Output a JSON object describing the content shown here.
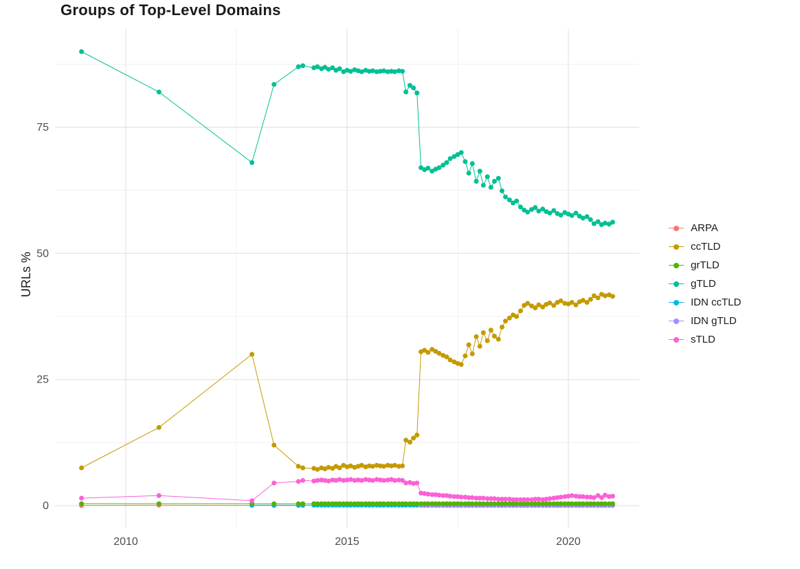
{
  "title": "Groups of Top-Level Domains",
  "chart_data": {
    "type": "line",
    "title": "Groups of Top-Level Domains",
    "xlabel": "",
    "ylabel": "URLs %",
    "xlim": [
      2008.4,
      2021.6
    ],
    "ylim": [
      -4.5,
      94.5
    ],
    "xticks": [
      2010,
      2015,
      2020
    ],
    "yticks": [
      0,
      25,
      50,
      75
    ],
    "legend_position": "right",
    "grid": {
      "major_color": "#e3e3e3",
      "minor_color": "#f0f0f0",
      "minor_x": [
        2012.5,
        2017.5
      ],
      "minor_y": [
        12.5,
        37.5,
        62.5,
        87.5
      ]
    },
    "background": "#ffffff",
    "x_grid": [
      2009.0,
      2010.75,
      2012.85,
      2013.35,
      2013.9,
      2014.0,
      2014.25,
      2014.33,
      2014.42,
      2014.5,
      2014.58,
      2014.67,
      2014.75,
      2014.83,
      2014.92,
      2015.0,
      2015.08,
      2015.17,
      2015.25,
      2015.33,
      2015.42,
      2015.5,
      2015.58,
      2015.67,
      2015.75,
      2015.83,
      2015.92,
      2016.0,
      2016.08,
      2016.17,
      2016.25,
      2016.33,
      2016.42,
      2016.5,
      2016.58,
      2016.67,
      2016.75,
      2016.83,
      2016.92,
      2017.0,
      2017.08,
      2017.17,
      2017.25,
      2017.33,
      2017.42,
      2017.5,
      2017.58,
      2017.67,
      2017.75,
      2017.83,
      2017.92,
      2018.0,
      2018.08,
      2018.17,
      2018.25,
      2018.33,
      2018.42,
      2018.5,
      2018.58,
      2018.67,
      2018.75,
      2018.83,
      2018.92,
      2019.0,
      2019.08,
      2019.17,
      2019.25,
      2019.33,
      2019.42,
      2019.5,
      2019.58,
      2019.67,
      2019.75,
      2019.83,
      2019.92,
      2020.0,
      2020.08,
      2020.17,
      2020.25,
      2020.33,
      2020.42,
      2020.5,
      2020.58,
      2020.67,
      2020.75,
      2020.83,
      2020.92,
      2021.0
    ],
    "series": [
      {
        "name": "ARPA",
        "color": "#F8766D",
        "z": 1,
        "points": [
          [
            2009.0,
            0.05
          ],
          [
            2010.75,
            0.1
          ],
          [
            2012.85,
            0.07
          ],
          [
            2013.35,
            0.05
          ],
          [
            2013.9,
            0.05
          ],
          [
            2014.0,
            0.05
          ]
        ]
      },
      {
        "name": "ccTLD",
        "color": "#C49A00",
        "z": 6,
        "y": [
          7.5,
          15.5,
          30,
          12,
          7.8,
          7.5,
          7.4,
          7.2,
          7.5,
          7.3,
          7.6,
          7.4,
          7.8,
          7.5,
          8,
          7.7,
          7.9,
          7.6,
          7.8,
          8,
          7.7,
          7.9,
          7.8,
          8,
          7.9,
          7.8,
          8,
          7.9,
          8,
          7.8,
          7.9,
          13,
          12.6,
          13.4,
          14,
          30.5,
          30.8,
          30.4,
          31,
          30.6,
          30.2,
          29.8,
          29.5,
          28.9,
          28.5,
          28.2,
          28,
          29.7,
          31.9,
          30.1,
          33.5,
          31.6,
          34.3,
          32.7,
          34.8,
          33.6,
          33,
          35.4,
          36.6,
          37.2,
          37.8,
          37.5,
          38.6,
          39.7,
          40.1,
          39.6,
          39.2,
          39.8,
          39.4,
          39.9,
          40.2,
          39.7,
          40.3,
          40.6,
          40.1,
          40,
          40.3,
          39.8,
          40.4,
          40.7,
          40.3,
          40.9,
          41.6,
          41.2,
          41.9,
          41.6,
          41.8,
          41.5
        ]
      },
      {
        "name": "grTLD",
        "color": "#53B400",
        "z": 4,
        "y": 0.4
      },
      {
        "name": "gTLD",
        "color": "#00C094",
        "z": 7,
        "y": [
          90,
          82,
          68,
          83.5,
          87,
          87.2,
          86.8,
          87,
          86.6,
          86.9,
          86.5,
          86.8,
          86.3,
          86.6,
          86,
          86.3,
          86.1,
          86.4,
          86.2,
          86,
          86.3,
          86.1,
          86.2,
          86,
          86.1,
          86.2,
          86,
          86.1,
          86,
          86.2,
          86.1,
          82,
          83.3,
          82.8,
          81.8,
          67,
          66.6,
          66.9,
          66.3,
          66.7,
          67,
          67.5,
          68,
          68.8,
          69.2,
          69.6,
          70,
          68.2,
          65.9,
          67.8,
          64.3,
          66.3,
          63.5,
          65.2,
          63.1,
          64.3,
          64.9,
          62.4,
          61.2,
          60.6,
          60,
          60.4,
          59.2,
          58.6,
          58.2,
          58.7,
          59.1,
          58.4,
          58.8,
          58.3,
          58,
          58.5,
          57.9,
          57.6,
          58.1,
          57.8,
          57.5,
          58,
          57.4,
          57,
          57.3,
          56.7,
          55.9,
          56.3,
          55.7,
          56,
          55.8,
          56.2
        ]
      },
      {
        "name": "IDN ccTLD",
        "color": "#00B6EB",
        "z": 2,
        "x_range": [
          2012.8,
          2021.1
        ],
        "y": 0.1
      },
      {
        "name": "IDN gTLD",
        "color": "#A58AFF",
        "z": 3,
        "x_range": [
          2016.6,
          2021.1
        ],
        "y": 0.05
      },
      {
        "name": "sTLD",
        "color": "#FB61D7",
        "z": 5,
        "y": [
          1.5,
          2,
          1,
          4.5,
          4.8,
          5,
          4.9,
          5,
          5.1,
          5,
          4.9,
          5.1,
          5,
          5.2,
          5,
          5.1,
          5.2,
          5,
          5.1,
          5,
          5.2,
          5.1,
          5,
          5.2,
          5.1,
          5,
          5.1,
          5.2,
          5,
          5.1,
          5,
          4.5,
          4.6,
          4.4,
          4.5,
          2.5,
          2.4,
          2.3,
          2.2,
          2.2,
          2.1,
          2,
          2,
          1.9,
          1.8,
          1.8,
          1.7,
          1.7,
          1.6,
          1.6,
          1.5,
          1.5,
          1.5,
          1.4,
          1.4,
          1.4,
          1.3,
          1.3,
          1.3,
          1.3,
          1.2,
          1.2,
          1.2,
          1.2,
          1.2,
          1.2,
          1.3,
          1.3,
          1.2,
          1.3,
          1.4,
          1.5,
          1.6,
          1.7,
          1.8,
          1.9,
          2,
          1.9,
          1.8,
          1.8,
          1.7,
          1.7,
          1.6,
          2,
          1.6,
          2.1,
          1.8,
          1.9
        ]
      }
    ]
  }
}
